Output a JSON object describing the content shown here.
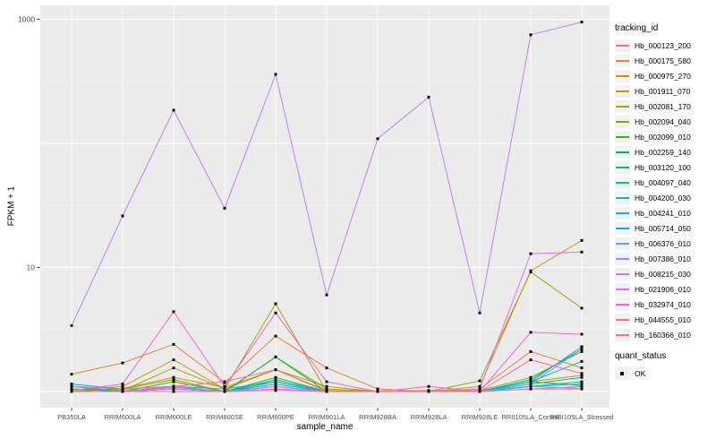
{
  "chart_data": {
    "type": "line",
    "title": "",
    "xlabel": "sample_name",
    "ylabel": "FPKM + 1",
    "y_scale": "log10",
    "ylim_displayed": [
      0.72,
      1280
    ],
    "y_ticks": [
      {
        "label": "1000",
        "value": 1000
      },
      {
        "label": "10",
        "value": 10
      }
    ],
    "gridlines_major_values": [
      1,
      10,
      100,
      1000
    ],
    "gridlines_minor_values": [
      3.162,
      31.62,
      316.2
    ],
    "grid": "on",
    "categories": [
      "PB350LA",
      "RRIM600LA",
      "RRIM600LE",
      "RRIM600SE",
      "RRIM600PE",
      "RRIM901LA",
      "RRIM928BA",
      "RRIM928LA",
      "RRIM928LE",
      "RRII105LA_Control",
      "RRII105LA_Stressed"
    ],
    "series": [
      {
        "name": "Hb_000123_200",
        "color": "#F8766D",
        "values": [
          1.05,
          1.0,
          1.08,
          1.0,
          1.05,
          1.0,
          1.0,
          1.02,
          1.0,
          1.1,
          1.06
        ]
      },
      {
        "name": "Hb_000175_580",
        "color": "#EA8331",
        "values": [
          1.38,
          1.7,
          2.4,
          1.18,
          2.8,
          1.55,
          1.05,
          1.0,
          1.05,
          2.1,
          1.55
        ]
      },
      {
        "name": "Hb_000975_270",
        "color": "#D89000",
        "values": [
          1.0,
          1.06,
          1.3,
          1.08,
          1.5,
          1.02,
          1.0,
          1.0,
          1.1,
          9.4,
          16.5
        ]
      },
      {
        "name": "Hb_001911_070",
        "color": "#C09B00",
        "values": [
          1.02,
          1.1,
          1.8,
          1.05,
          1.5,
          1.1,
          1.0,
          1.0,
          1.0,
          1.2,
          1.35
        ]
      },
      {
        "name": "Hb_002081_170",
        "color": "#A3A500",
        "values": [
          1.05,
          1.02,
          1.55,
          1.05,
          5.1,
          1.0,
          1.0,
          1.0,
          1.22,
          9.2,
          4.7
        ]
      },
      {
        "name": "Hb_002094_040",
        "color": "#7CAE00",
        "values": [
          1.0,
          1.05,
          1.25,
          1.0,
          1.9,
          1.05,
          1.0,
          1.0,
          1.02,
          1.3,
          2.1
        ]
      },
      {
        "name": "Hb_002099_010",
        "color": "#39B600",
        "values": [
          1.0,
          1.0,
          1.2,
          1.0,
          1.3,
          1.0,
          1.0,
          1.0,
          1.0,
          1.2,
          1.12
        ]
      },
      {
        "name": "Hb_002259_140",
        "color": "#00BB4E",
        "values": [
          1.0,
          1.0,
          1.1,
          1.0,
          1.9,
          1.0,
          1.0,
          1.0,
          1.0,
          1.25,
          2.2
        ]
      },
      {
        "name": "Hb_003120_100",
        "color": "#00BF7D",
        "values": [
          1.0,
          1.0,
          1.05,
          1.0,
          1.2,
          1.0,
          1.0,
          1.0,
          1.0,
          1.15,
          1.3
        ]
      },
      {
        "name": "Hb_004097_040",
        "color": "#00C1A3",
        "values": [
          1.05,
          1.0,
          1.1,
          1.0,
          1.25,
          1.0,
          1.0,
          1.0,
          1.0,
          1.2,
          1.75
        ]
      },
      {
        "name": "Hb_004200_030",
        "color": "#00BFC4",
        "values": [
          1.1,
          1.05,
          1.1,
          1.05,
          1.2,
          1.0,
          1.0,
          1.0,
          1.0,
          1.1,
          1.2
        ]
      },
      {
        "name": "Hb_004241_010",
        "color": "#00BAE0",
        "values": [
          1.1,
          1.0,
          1.05,
          1.0,
          1.1,
          1.0,
          1.0,
          1.0,
          1.0,
          1.1,
          1.15
        ]
      },
      {
        "name": "Hb_005714_050",
        "color": "#00B0F6",
        "values": [
          1.15,
          1.05,
          1.1,
          1.0,
          1.15,
          1.0,
          1.0,
          1.0,
          1.0,
          1.2,
          2.3
        ]
      },
      {
        "name": "Hb_006376_010",
        "color": "#619CFF",
        "values": [
          1.0,
          1.0,
          1.0,
          1.0,
          1.1,
          1.0,
          1.0,
          1.0,
          1.0,
          1.15,
          2.2
        ]
      },
      {
        "name": "Hb_007386_010",
        "color": "#9590FF",
        "values": [
          1.0,
          1.0,
          1.05,
          1.0,
          1.02,
          1.0,
          1.0,
          1.0,
          1.0,
          1.05,
          1.1
        ]
      },
      {
        "name": "Hb_008215_030",
        "color": "#B983FF",
        "values": [
          3.4,
          26,
          185,
          30,
          360,
          6.0,
          109,
          236,
          4.3,
          750,
          950
        ]
      },
      {
        "name": "Hb_021906_010",
        "color": "#E76BF3",
        "values": [
          1.0,
          1.0,
          1.1,
          1.0,
          1.1,
          1.0,
          1.0,
          1.0,
          1.05,
          12.9,
          13.3
        ]
      },
      {
        "name": "Hb_032974_010",
        "color": "#FD61D1",
        "values": [
          1.02,
          1.15,
          4.4,
          1.1,
          4.3,
          1.2,
          1.0,
          1.1,
          1.0,
          3.0,
          2.9
        ]
      },
      {
        "name": "Hb_044555_010",
        "color": "#FF67A4",
        "values": [
          1.1,
          1.05,
          1.1,
          1.2,
          1.5,
          1.0,
          1.0,
          1.0,
          1.0,
          1.8,
          1.4
        ]
      },
      {
        "name": "Hb_160366_010",
        "color": "#FF6C91",
        "values": [
          1.0,
          1.0,
          1.0,
          1.0,
          1.05,
          1.0,
          1.0,
          1.0,
          1.0,
          1.05,
          1.05
        ]
      }
    ],
    "legend": {
      "position": "right",
      "tracking_title": "tracking_id",
      "quant_title": "quant_status",
      "quant_ok_label": "OK",
      "marker": "black-square"
    },
    "colors": {
      "panel_bg": "#EBEBEB",
      "grid": "#FFFFFF",
      "marker": "#0A0A0A",
      "axis_text": "#4D4D4D",
      "legend_key_bg": "#F2F2F2"
    }
  }
}
